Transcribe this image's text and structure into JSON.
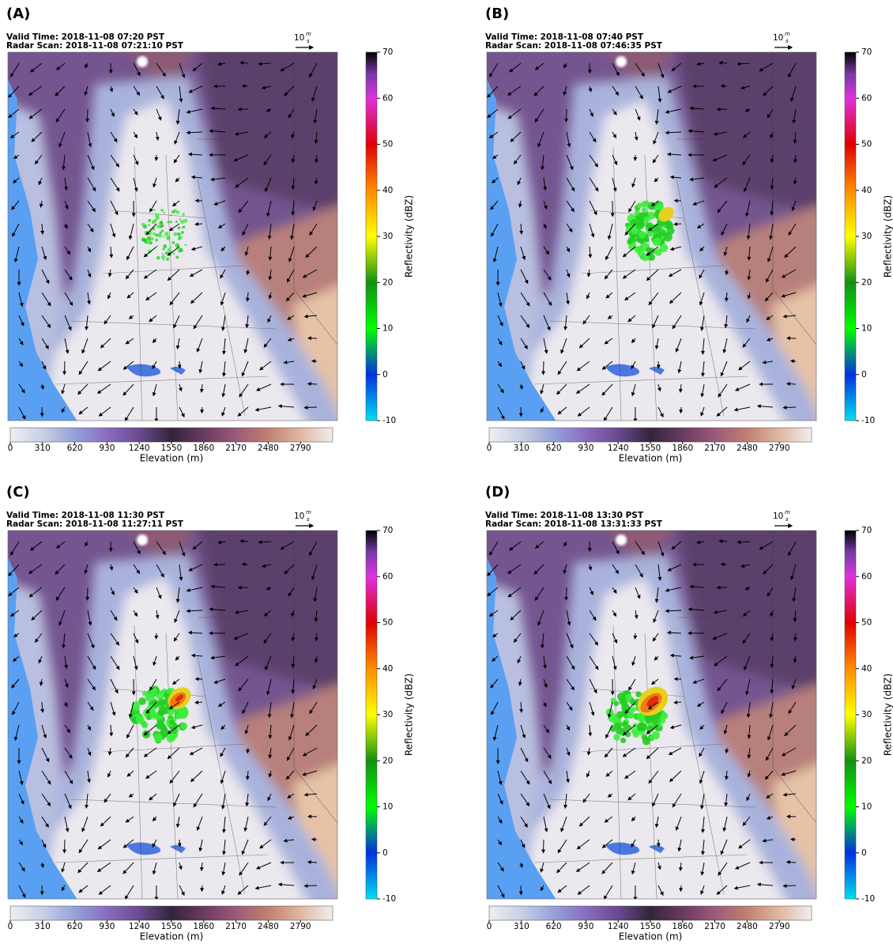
{
  "panels": [
    {
      "label": "(A)",
      "valid_time": "Valid Time: 2018-11-08 07:20 PST",
      "radar_scan": "Radar Scan: 2018-11-08 07:21:10 PST"
    },
    {
      "label": "(B)",
      "valid_time": "Valid Time: 2018-11-08 07:40 PST",
      "radar_scan": "Radar Scan: 2018-11-08 07:46:35 PST"
    },
    {
      "label": "(C)",
      "valid_time": "Valid Time: 2018-11-08 11:30 PST",
      "radar_scan": "Radar Scan: 2018-11-08 11:27:11 PST"
    },
    {
      "label": "(D)",
      "valid_time": "Valid Time: 2018-11-08 13:30 PST",
      "radar_scan": "Radar Scan: 2018-11-08 13:31:33 PST"
    }
  ],
  "wind_scale": {
    "number": "10",
    "numerator": "m",
    "denominator": "s"
  },
  "reflectivity_colorbar": {
    "label": "Reflectivity (dBZ)",
    "lim": [
      -10,
      70
    ],
    "ticks": [
      -10,
      0,
      10,
      20,
      30,
      40,
      50,
      60,
      70
    ]
  },
  "elevation_colorbar": {
    "label": "Elevation (m)",
    "lim": [
      0,
      3100
    ],
    "ticks": [
      0,
      310,
      620,
      930,
      1240,
      1550,
      1860,
      2170,
      2480,
      2790
    ]
  }
}
